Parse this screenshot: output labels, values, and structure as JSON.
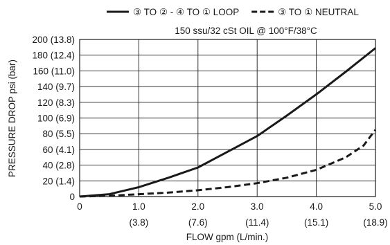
{
  "chart_data": {
    "type": "line",
    "subtitle": "150 ssu/32 cSt OIL @ 100°F/38°C",
    "xlabel": "FLOW gpm (L/min.)",
    "ylabel": "PRESSURE DROP psi (bar)",
    "xlim": [
      0,
      5.0
    ],
    "ylim": [
      0,
      200
    ],
    "grid": true,
    "legend_position": "top",
    "x_ticks": [
      {
        "value": 0,
        "label": "0",
        "sub": ""
      },
      {
        "value": 1.0,
        "label": "1.0",
        "sub": "(3.8)"
      },
      {
        "value": 2.0,
        "label": "2.0",
        "sub": "(7.6)"
      },
      {
        "value": 3.0,
        "label": "3.0",
        "sub": "(11.4)"
      },
      {
        "value": 4.0,
        "label": "4.0",
        "sub": "(15.1)"
      },
      {
        "value": 5.0,
        "label": "5.0",
        "sub": "(18.9)"
      }
    ],
    "y_ticks": [
      {
        "value": 0,
        "label": "0"
      },
      {
        "value": 20,
        "label": "20 (1.4)"
      },
      {
        "value": 40,
        "label": "40 (2.8)"
      },
      {
        "value": 60,
        "label": "60 (4.1)"
      },
      {
        "value": 80,
        "label": "80 (5.5)"
      },
      {
        "value": 100,
        "label": "100 (6.9)"
      },
      {
        "value": 120,
        "label": "120 (8.3)"
      },
      {
        "value": 140,
        "label": "140 (9.7)"
      },
      {
        "value": 160,
        "label": "160 (11.0)"
      },
      {
        "value": 180,
        "label": "180 (12.4)"
      },
      {
        "value": 200,
        "label": "200 (13.8)"
      }
    ],
    "series": [
      {
        "name": "③ TO ② - ④ TO ① LOOP",
        "style": "solid",
        "color": "#1a1a1a",
        "points": [
          [
            0,
            0
          ],
          [
            0.5,
            3
          ],
          [
            1.0,
            12
          ],
          [
            1.5,
            24
          ],
          [
            2.0,
            37
          ],
          [
            2.5,
            57
          ],
          [
            3.0,
            77
          ],
          [
            3.5,
            103
          ],
          [
            4.0,
            130
          ],
          [
            4.5,
            159
          ],
          [
            5.0,
            189
          ]
        ]
      },
      {
        "name": "③ TO ① NEUTRAL",
        "style": "dashed",
        "color": "#1a1a1a",
        "points": [
          [
            0,
            0
          ],
          [
            0.5,
            1
          ],
          [
            1.0,
            3
          ],
          [
            1.5,
            5
          ],
          [
            2.0,
            8
          ],
          [
            2.5,
            12
          ],
          [
            3.0,
            17
          ],
          [
            3.5,
            24
          ],
          [
            4.0,
            34
          ],
          [
            4.5,
            50
          ],
          [
            4.8,
            65
          ],
          [
            5.0,
            85
          ]
        ]
      }
    ]
  }
}
